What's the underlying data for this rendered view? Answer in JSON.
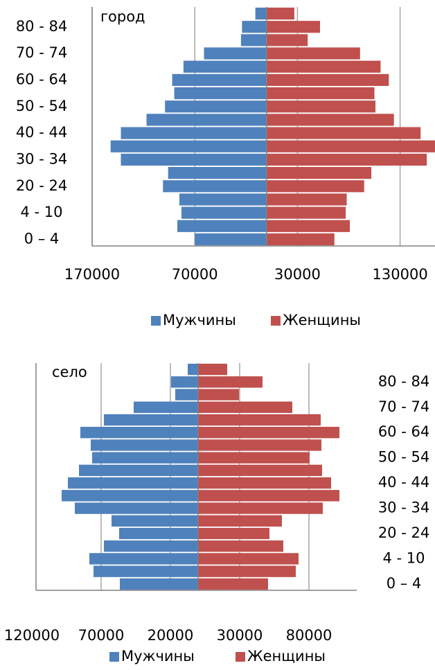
{
  "chart_data": [
    {
      "type": "pyramid",
      "title": "город",
      "categories": [
        "0 – 4",
        null,
        "4 - 10",
        null,
        "20 - 24",
        null,
        "30 - 34",
        null,
        "40 - 44",
        null,
        "50 - 54",
        null,
        "60 - 64",
        null,
        "70 - 74",
        null,
        "80 - 84",
        null
      ],
      "category_axis_side": "left",
      "series": [
        {
          "name": "Мужчины",
          "color": "#4f81bd",
          "values": [
            -70000,
            -87000,
            -83000,
            -85000,
            -101000,
            -96000,
            -142000,
            -152000,
            -142000,
            -117000,
            -99000,
            -90000,
            -92000,
            -81000,
            -61000,
            -25000,
            -24000,
            -11000
          ]
        },
        {
          "name": "Женщины",
          "color": "#c0504d",
          "values": [
            66000,
            81000,
            77000,
            78000,
            95000,
            102000,
            156000,
            164000,
            150000,
            124000,
            106000,
            105000,
            119000,
            111000,
            91000,
            40000,
            52000,
            27000
          ]
        }
      ],
      "xlim": [
        -170000,
        164000
      ],
      "xticks": [
        {
          "value": -170000,
          "label": "170000"
        },
        {
          "value": -70000,
          "label": "70000"
        },
        30000,
        130000
      ],
      "grid": true,
      "legend": "bottom"
    },
    {
      "type": "pyramid",
      "title": "село",
      "categories": [
        "0 – 4",
        null,
        "4 - 10",
        null,
        "20 - 24",
        null,
        "30 - 34",
        null,
        "40 - 44",
        null,
        "50 - 54",
        null,
        "60 - 64",
        null,
        "70 - 74",
        null,
        "80 - 84",
        null
      ],
      "category_axis_side": "right",
      "series": [
        {
          "name": "Мужчины",
          "color": "#4f81bd",
          "values": [
            -56500,
            -75500,
            -78500,
            -68000,
            -57000,
            -62500,
            -89000,
            -98500,
            -94000,
            -86000,
            -76500,
            -77500,
            -85000,
            -68000,
            -46500,
            -16500,
            -19500,
            -7500
          ]
        },
        {
          "name": "Женщины",
          "color": "#c0504d",
          "values": [
            50500,
            70500,
            72500,
            61500,
            51500,
            60500,
            90000,
            102000,
            96000,
            89500,
            80500,
            89000,
            102000,
            88500,
            68000,
            29500,
            46500,
            21000
          ]
        }
      ],
      "xlim": [
        -117000,
        114500
      ],
      "xticks": [
        {
          "value": -120000,
          "label": "120000"
        },
        {
          "value": -70000,
          "label": "70000"
        },
        {
          "value": -20000,
          "label": "20000"
        },
        30000,
        80000
      ],
      "grid": true,
      "legend": "bottom"
    }
  ]
}
